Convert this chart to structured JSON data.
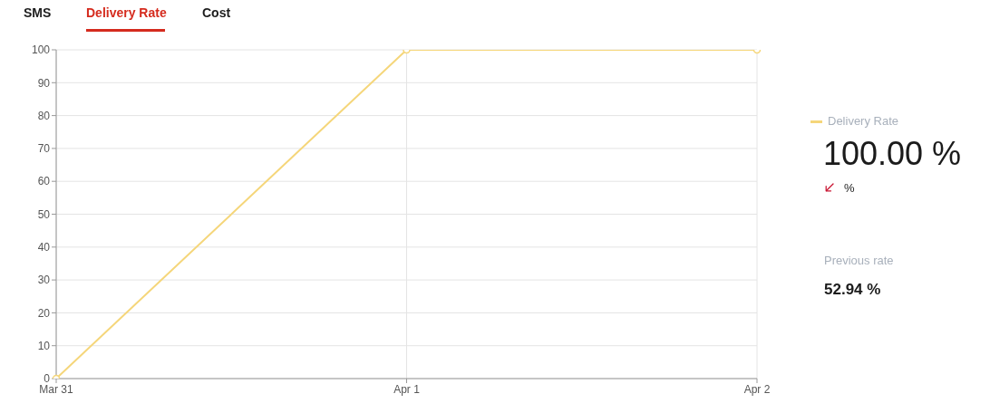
{
  "chart_data": {
    "type": "line",
    "title": "Delivery Rate",
    "categories": [
      "Mar 31",
      "Apr 1",
      "Apr 2"
    ],
    "series": [
      {
        "name": "Delivery Rate",
        "color": "#f5d67a",
        "values": [
          0,
          100,
          100
        ]
      }
    ],
    "ylim": [
      0,
      100
    ],
    "yticks": [
      0,
      10,
      20,
      30,
      40,
      50,
      60,
      70,
      80,
      90,
      100
    ],
    "grid": true,
    "legend": "right",
    "marker": "circle",
    "annotations": [
      "SMS",
      "Cost",
      "100.00 %",
      "%",
      "Previous rate",
      "52.94 %"
    ]
  }
}
